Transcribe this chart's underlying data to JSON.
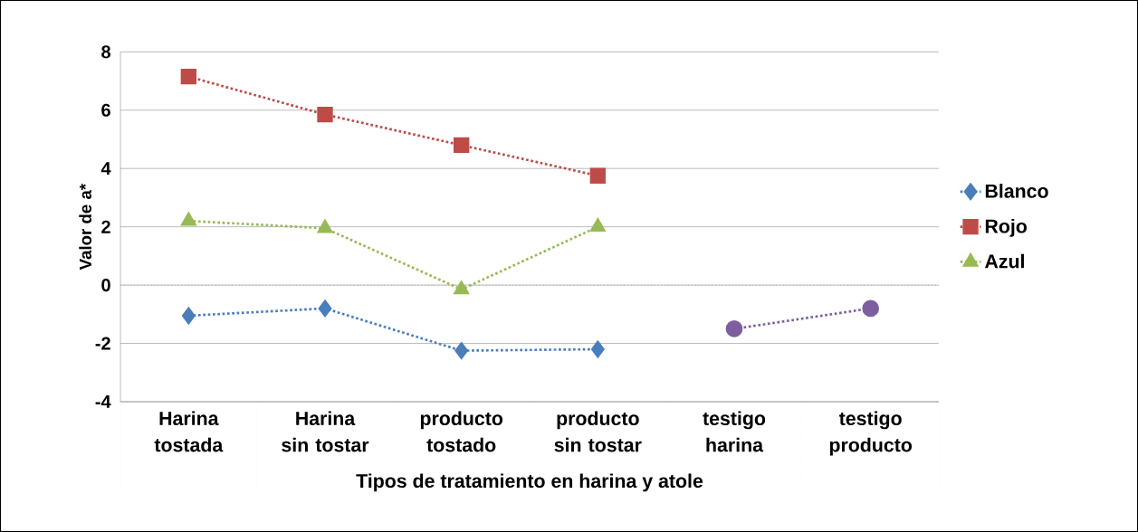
{
  "chart_data": {
    "type": "line",
    "xlabel": "Tipos de tratamiento en harina y atole",
    "ylabel": "Valor de a*",
    "categories": [
      "Harina tostada",
      "Harina sin tostar",
      "producto tostado",
      "producto sin tostar",
      "testigo harina",
      "testigo producto"
    ],
    "series": [
      {
        "name": "Blanco",
        "color": "#4a7ebb",
        "marker": "diamond",
        "values": [
          -1.05,
          -0.8,
          -2.25,
          -2.2,
          null,
          null
        ]
      },
      {
        "name": "Rojo",
        "color": "#be4b48",
        "marker": "square",
        "values": [
          7.15,
          5.85,
          4.8,
          3.75,
          null,
          null
        ]
      },
      {
        "name": "Azul",
        "color": "#98b954",
        "marker": "triangle",
        "values": [
          2.2,
          1.95,
          -0.15,
          2.0,
          null,
          null
        ]
      },
      {
        "color": "#7d5fa0",
        "marker": "circle",
        "values": [
          null,
          null,
          null,
          null,
          -1.5,
          -0.8
        ]
      }
    ],
    "line_style": "dotted",
    "ylim": [
      -4,
      8
    ],
    "yticks": [
      -4,
      -2,
      0,
      2,
      4,
      6,
      8
    ],
    "grid": "y",
    "legend": "right",
    "ref_lines": [
      {
        "axis": "y",
        "value": 0,
        "color": "#a0a0a0",
        "line_style": "dotted"
      }
    ]
  }
}
